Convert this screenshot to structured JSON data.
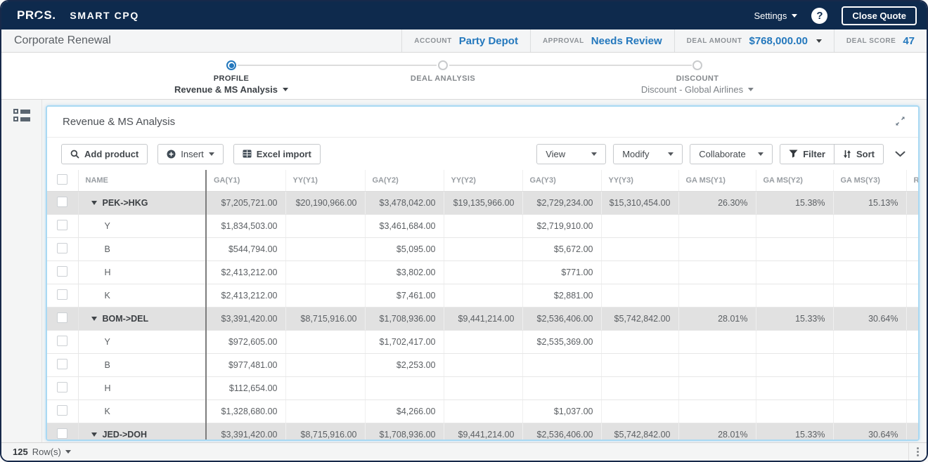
{
  "topbar": {
    "logo_pre": "PR",
    "logo_o": "O",
    "logo_post": "S.",
    "app_name": "SMART CPQ",
    "settings_label": "Settings",
    "help_label": "?",
    "close_quote_label": "Close Quote"
  },
  "quote_bar": {
    "title": "Corporate Renewal",
    "fields": [
      {
        "label": "ACCOUNT",
        "value": "Party Depot"
      },
      {
        "label": "APPROVAL",
        "value": "Needs Review"
      },
      {
        "label": "DEAL AMOUNT",
        "value": "$768,000.00",
        "has_caret": true
      },
      {
        "label": "DEAL SCORE",
        "value": "47"
      }
    ]
  },
  "stepper": {
    "steps": [
      {
        "label": "PROFILE",
        "sublabel": "Revenue & MS Analysis",
        "active": true
      },
      {
        "label": "DEAL ANALYSIS",
        "sublabel": "",
        "active": false
      },
      {
        "label": "DISCOUNT",
        "sublabel": "Discount - Global Airlines",
        "active": false
      }
    ]
  },
  "panel": {
    "title": "Revenue & MS Analysis",
    "toolbar": {
      "add_product": "Add product",
      "insert": "Insert",
      "excel_import": "Excel import",
      "view": "View",
      "modify": "Modify",
      "collaborate": "Collaborate",
      "filter": "Filter",
      "sort": "Sort"
    }
  },
  "table": {
    "columns": [
      "NAME",
      "GA(Y1)",
      "YY(Y1)",
      "GA(Y2)",
      "YY(Y2)",
      "GA(Y3)",
      "YY(Y3)",
      "GA MS(Y1)",
      "GA MS(Y2)",
      "GA MS(Y3)",
      "R"
    ],
    "rows": [
      {
        "type": "group",
        "name": "PEK->HKG",
        "cells": [
          "$7,205,721.00",
          "$20,190,966.00",
          "$3,478,042.00",
          "$19,135,966.00",
          "$2,729,234.00",
          "$15,310,454.00",
          "26.30%",
          "15.38%",
          "15.13%",
          ""
        ]
      },
      {
        "type": "child",
        "name": "Y",
        "cells": [
          "$1,834,503.00",
          "",
          "$3,461,684.00",
          "",
          "$2,719,910.00",
          "",
          "",
          "",
          "",
          ""
        ]
      },
      {
        "type": "child",
        "name": "B",
        "cells": [
          "$544,794.00",
          "",
          "$5,095.00",
          "",
          "$5,672.00",
          "",
          "",
          "",
          "",
          ""
        ]
      },
      {
        "type": "child",
        "name": "H",
        "cells": [
          "$2,413,212.00",
          "",
          "$3,802.00",
          "",
          "$771.00",
          "",
          "",
          "",
          "",
          ""
        ]
      },
      {
        "type": "child",
        "name": "K",
        "cells": [
          "$2,413,212.00",
          "",
          "$7,461.00",
          "",
          "$2,881.00",
          "",
          "",
          "",
          "",
          ""
        ]
      },
      {
        "type": "group",
        "name": "BOM->DEL",
        "cells": [
          "$3,391,420.00",
          "$8,715,916.00",
          "$1,708,936.00",
          "$9,441,214.00",
          "$2,536,406.00",
          "$5,742,842.00",
          "28.01%",
          "15.33%",
          "30.64%",
          ""
        ]
      },
      {
        "type": "child",
        "name": "Y",
        "cells": [
          "$972,605.00",
          "",
          "$1,702,417.00",
          "",
          "$2,535,369.00",
          "",
          "",
          "",
          "",
          ""
        ]
      },
      {
        "type": "child",
        "name": "B",
        "cells": [
          "$977,481.00",
          "",
          "$2,253.00",
          "",
          "",
          "",
          "",
          "",
          "",
          ""
        ]
      },
      {
        "type": "child",
        "name": "H",
        "cells": [
          "$112,654.00",
          "",
          "",
          "",
          "",
          "",
          "",
          "",
          "",
          ""
        ]
      },
      {
        "type": "child",
        "name": "K",
        "cells": [
          "$1,328,680.00",
          "",
          "$4,266.00",
          "",
          "$1,037.00",
          "",
          "",
          "",
          "",
          ""
        ]
      },
      {
        "type": "group",
        "name": "JED->DOH",
        "cells": [
          "$3,391,420.00",
          "$8,715,916.00",
          "$1,708,936.00",
          "$9,441,214.00",
          "$2,536,406.00",
          "$5,742,842.00",
          "28.01%",
          "15.33%",
          "30.64%",
          ""
        ]
      }
    ]
  },
  "status_bar": {
    "row_count": "125",
    "rows_label": "Row(s)"
  },
  "colors": {
    "navy": "#0e2a4d",
    "accent_blue": "#2478bd",
    "group_row_bg": "#e1e1e1",
    "panel_border": "#a9d9f3",
    "name_divider": "#7d7d7d"
  }
}
